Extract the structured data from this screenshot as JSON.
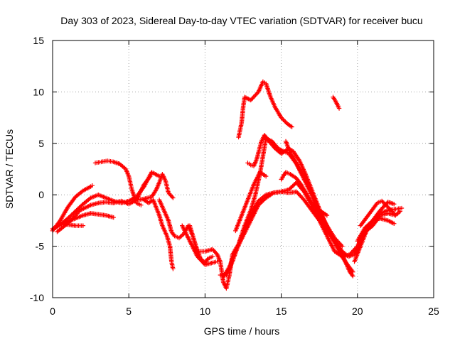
{
  "chart_data": {
    "type": "scatter",
    "title": "Day 303 of 2023, Sidereal Day-to-day VTEC variation (SDTVAR) for receiver bucu",
    "xlabel": "GPS time / hours",
    "ylabel": "SDTVAR / TECUs",
    "xlim": [
      0,
      25
    ],
    "ylim": [
      -10,
      15
    ],
    "xticks": [
      "0",
      "5",
      "10",
      "15",
      "20",
      "25"
    ],
    "yticks": [
      "-10",
      "-5",
      "0",
      "5",
      "10",
      "15"
    ],
    "grid": true,
    "marker": "plus",
    "color": "#ff0000",
    "series": [
      {
        "name": "track-1",
        "points": [
          [
            0,
            -3.5
          ],
          [
            0.5,
            -2.5
          ],
          [
            1.0,
            -1.2
          ],
          [
            1.5,
            -0.2
          ],
          [
            2.0,
            0.4
          ],
          [
            2.5,
            0.8
          ],
          [
            2.6,
            0.9
          ]
        ]
      },
      {
        "name": "track-2",
        "points": [
          [
            0,
            -3.3
          ],
          [
            0.5,
            -2.9
          ],
          [
            1.0,
            -2.3
          ],
          [
            1.5,
            -1.6
          ],
          [
            2.0,
            -0.9
          ],
          [
            2.5,
            -0.3
          ],
          [
            3.0,
            0.0
          ],
          [
            3.5,
            -0.3
          ],
          [
            4.0,
            -0.6
          ],
          [
            4.5,
            -0.8
          ],
          [
            5.0,
            -0.6
          ],
          [
            5.5,
            -0.2
          ],
          [
            6.0,
            0.8
          ],
          [
            6.5,
            2.2
          ],
          [
            7.0,
            1.8
          ]
        ]
      },
      {
        "name": "track-3",
        "points": [
          [
            0.2,
            -3.2
          ],
          [
            0.5,
            -2.9
          ],
          [
            1.0,
            -2.6
          ],
          [
            1.5,
            -2.3
          ],
          [
            2.0,
            -2.0
          ],
          [
            2.5,
            -1.8
          ],
          [
            3.0,
            -1.9
          ],
          [
            3.5,
            -2.0
          ],
          [
            4.0,
            -2.2
          ]
        ]
      },
      {
        "name": "track-4",
        "points": [
          [
            0.3,
            -3.6
          ],
          [
            0.8,
            -3.0
          ],
          [
            1.2,
            -2.5
          ],
          [
            1.8,
            -1.5
          ],
          [
            2.5,
            -1.0
          ],
          [
            3.0,
            -0.8
          ],
          [
            3.5,
            -0.7
          ],
          [
            4.0,
            -0.8
          ],
          [
            4.5,
            -0.6
          ],
          [
            5.0,
            -0.9
          ],
          [
            5.5,
            -0.5
          ],
          [
            6.0,
            1.0
          ],
          [
            6.4,
            1.8
          ]
        ]
      },
      {
        "name": "track-5",
        "points": [
          [
            0.5,
            -2.8
          ],
          [
            1.0,
            -2.9
          ],
          [
            1.5,
            -3.0
          ],
          [
            2.0,
            -3.0
          ]
        ]
      },
      {
        "name": "track-6",
        "points": [
          [
            2.8,
            3.1
          ],
          [
            3.2,
            3.2
          ],
          [
            3.6,
            3.3
          ],
          [
            4.0,
            3.2
          ],
          [
            4.4,
            3.0
          ],
          [
            4.8,
            2.5
          ],
          [
            5.0,
            1.8
          ],
          [
            5.2,
            0.5
          ],
          [
            5.5,
            -0.8
          ],
          [
            5.8,
            -1.0
          ]
        ]
      },
      {
        "name": "track-7",
        "points": [
          [
            5.5,
            -0.5
          ],
          [
            6.0,
            -0.4
          ],
          [
            6.5,
            -0.2
          ],
          [
            6.8,
            0.5
          ],
          [
            7.0,
            1.2
          ],
          [
            7.2,
            2.0
          ],
          [
            7.4,
            1.4
          ],
          [
            7.6,
            0.2
          ],
          [
            7.9,
            -0.3
          ]
        ]
      },
      {
        "name": "track-8",
        "points": [
          [
            6.0,
            -0.5
          ],
          [
            6.3,
            -0.8
          ],
          [
            6.6,
            -0.5
          ],
          [
            7.0,
            -2.0
          ],
          [
            7.2,
            -3.0
          ],
          [
            7.5,
            -4.0
          ],
          [
            7.7,
            -5.0
          ],
          [
            7.8,
            -6.5
          ],
          [
            7.9,
            -7.2
          ]
        ]
      },
      {
        "name": "track-9",
        "points": [
          [
            7.0,
            -0.5
          ],
          [
            7.3,
            -1.5
          ],
          [
            7.6,
            -2.5
          ],
          [
            7.8,
            -3.6
          ],
          [
            8.0,
            -4.0
          ],
          [
            8.3,
            -4.2
          ],
          [
            8.6,
            -3.8
          ],
          [
            8.9,
            -3.0
          ],
          [
            9.2,
            -4.0
          ],
          [
            9.4,
            -5.0
          ],
          [
            9.7,
            -6.2
          ],
          [
            10.0,
            -6.6
          ],
          [
            10.2,
            -6.2
          ],
          [
            10.5,
            -6.0
          ]
        ]
      },
      {
        "name": "track-10",
        "points": [
          [
            8.5,
            -3.0
          ],
          [
            9.0,
            -4.5
          ],
          [
            9.5,
            -6.0
          ],
          [
            10.0,
            -6.8
          ],
          [
            10.5,
            -6.6
          ],
          [
            10.8,
            -6.5
          ]
        ]
      },
      {
        "name": "track-11",
        "points": [
          [
            9.0,
            -3.0
          ],
          [
            9.5,
            -5.5
          ],
          [
            10.0,
            -5.5
          ],
          [
            10.5,
            -5.3
          ],
          [
            10.8,
            -5.8
          ],
          [
            11.0,
            -6.5
          ],
          [
            11.2,
            -8.5
          ],
          [
            11.4,
            -9.1
          ],
          [
            11.6,
            -7.8
          ],
          [
            11.8,
            -5.8
          ],
          [
            12.2,
            -4.8
          ],
          [
            12.5,
            -3.8
          ],
          [
            13.0,
            -2.0
          ],
          [
            13.5,
            -0.6
          ],
          [
            14.0,
            0.0
          ],
          [
            14.5,
            0.2
          ],
          [
            15.0,
            0.3
          ],
          [
            15.5,
            0.2
          ],
          [
            16.0,
            0.3
          ],
          [
            16.5,
            -0.5
          ],
          [
            17.0,
            -1.5
          ],
          [
            17.5,
            -2.5
          ],
          [
            18.0,
            -4.0
          ],
          [
            18.5,
            -5.5
          ],
          [
            19.0,
            -6.0
          ],
          [
            19.5,
            -5.8
          ],
          [
            20.0,
            -5.0
          ],
          [
            20.5,
            -3.5
          ],
          [
            21.0,
            -2.5
          ],
          [
            21.5,
            -1.8
          ],
          [
            22.0,
            -1.5
          ],
          [
            22.5,
            -1.4
          ],
          [
            22.9,
            -1.3
          ]
        ]
      },
      {
        "name": "track-12",
        "points": [
          [
            11.0,
            -7.8
          ],
          [
            11.4,
            -7.8
          ],
          [
            11.8,
            -6.5
          ],
          [
            12.2,
            -4.8
          ],
          [
            12.6,
            -3.0
          ],
          [
            13.0,
            -1.5
          ],
          [
            13.3,
            0.0
          ],
          [
            13.6,
            2.0
          ],
          [
            14.0,
            5.5
          ],
          [
            14.4,
            5.2
          ],
          [
            14.8,
            4.5
          ],
          [
            15.2,
            4.2
          ],
          [
            15.5,
            4.0
          ],
          [
            16.0,
            3.0
          ],
          [
            16.5,
            1.5
          ],
          [
            17.0,
            0.0
          ],
          [
            17.5,
            -2.0
          ],
          [
            18.0,
            -3.5
          ],
          [
            18.5,
            -4.5
          ],
          [
            19.0,
            -5.5
          ],
          [
            19.4,
            -6.0
          ],
          [
            19.8,
            -5.8
          ],
          [
            20.2,
            -4.5
          ],
          [
            20.6,
            -3.5
          ],
          [
            21.0,
            -2.5
          ],
          [
            21.5,
            -1.5
          ],
          [
            22.0,
            -0.7
          ],
          [
            22.4,
            -0.9
          ]
        ]
      },
      {
        "name": "track-13",
        "points": [
          [
            11.2,
            -8.0
          ],
          [
            11.6,
            -7.0
          ],
          [
            12.0,
            -5.5
          ],
          [
            12.5,
            -4.0
          ],
          [
            13.0,
            -2.5
          ],
          [
            13.5,
            -1.0
          ],
          [
            14.0,
            -0.3
          ],
          [
            14.5,
            0.2
          ],
          [
            15.0,
            0.3
          ],
          [
            15.5,
            0.5
          ],
          [
            16.0,
            1.2
          ],
          [
            16.5,
            0.3
          ],
          [
            17.0,
            -1.0
          ],
          [
            17.5,
            -2.5
          ],
          [
            18.0,
            -3.5
          ],
          [
            18.5,
            -4.5
          ],
          [
            19.0,
            -5.8
          ],
          [
            19.5,
            -7.5
          ],
          [
            19.7,
            -7.9
          ]
        ]
      },
      {
        "name": "track-14",
        "points": [
          [
            12.0,
            -3.5
          ],
          [
            12.4,
            -2.0
          ],
          [
            12.8,
            -0.5
          ],
          [
            13.2,
            1.0
          ],
          [
            13.6,
            2.2
          ],
          [
            14.0,
            1.8
          ]
        ]
      },
      {
        "name": "track-15",
        "points": [
          [
            12.2,
            5.6
          ],
          [
            12.4,
            7.0
          ],
          [
            12.5,
            8.5
          ],
          [
            12.6,
            9.5
          ],
          [
            13.0,
            9.2
          ],
          [
            13.5,
            10.0
          ],
          [
            13.8,
            11.0
          ],
          [
            14.0,
            10.8
          ],
          [
            14.3,
            9.5
          ],
          [
            14.6,
            8.5
          ],
          [
            15.0,
            7.5
          ],
          [
            15.4,
            6.9
          ],
          [
            15.7,
            6.6
          ]
        ]
      },
      {
        "name": "track-16",
        "points": [
          [
            12.8,
            3.1
          ],
          [
            13.0,
            2.9
          ],
          [
            13.2,
            2.8
          ],
          [
            13.4,
            3.5
          ],
          [
            13.7,
            5.2
          ],
          [
            13.9,
            5.8
          ],
          [
            14.2,
            5.2
          ],
          [
            14.6,
            4.5
          ],
          [
            15.0,
            4.0
          ],
          [
            15.5,
            4.5
          ],
          [
            15.8,
            4.2
          ],
          [
            16.2,
            3.3
          ],
          [
            16.6,
            2.0
          ],
          [
            17.0,
            0.5
          ],
          [
            17.4,
            -1.0
          ],
          [
            17.8,
            -2.5
          ],
          [
            18.3,
            -4.0
          ],
          [
            18.8,
            -5.5
          ],
          [
            19.2,
            -6.5
          ],
          [
            19.7,
            -7.5
          ]
        ]
      },
      {
        "name": "track-17",
        "points": [
          [
            15.3,
            5.2
          ],
          [
            15.6,
            4.0
          ],
          [
            15.8,
            3.6
          ],
          [
            16.2,
            2.5
          ],
          [
            16.6,
            1.5
          ],
          [
            17.0,
            0.2
          ],
          [
            17.5,
            -1.5
          ],
          [
            18.0,
            -3.0
          ],
          [
            18.5,
            -4.2
          ],
          [
            19.0,
            -5.0
          ]
        ]
      },
      {
        "name": "track-18",
        "points": [
          [
            15.0,
            1.5
          ],
          [
            15.3,
            2.2
          ],
          [
            15.6,
            2.0
          ],
          [
            16.0,
            1.6
          ],
          [
            16.3,
            1.0
          ],
          [
            16.7,
            0.0
          ],
          [
            17.0,
            -0.8
          ],
          [
            17.5,
            -1.5
          ],
          [
            18.0,
            -2.0
          ]
        ]
      },
      {
        "name": "track-19",
        "points": [
          [
            18.4,
            9.5
          ],
          [
            18.6,
            9.0
          ],
          [
            18.8,
            8.4
          ]
        ]
      },
      {
        "name": "track-20",
        "points": [
          [
            19.8,
            -6.5
          ],
          [
            20.2,
            -5.0
          ],
          [
            20.6,
            -3.5
          ],
          [
            21.0,
            -3.0
          ],
          [
            21.5,
            -2.0
          ],
          [
            22.0,
            -1.8
          ],
          [
            22.5,
            -2.0
          ],
          [
            22.8,
            -1.6
          ]
        ]
      },
      {
        "name": "track-21",
        "points": [
          [
            20.0,
            -4.5
          ],
          [
            20.5,
            -3.2
          ],
          [
            21.0,
            -2.5
          ],
          [
            21.5,
            -2.3
          ],
          [
            22.0,
            -2.5
          ],
          [
            22.4,
            -2.8
          ]
        ]
      },
      {
        "name": "track-22",
        "points": [
          [
            20.2,
            -3.0
          ],
          [
            20.6,
            -2.2
          ],
          [
            21.0,
            -1.4
          ],
          [
            21.3,
            -0.8
          ],
          [
            21.6,
            -0.6
          ],
          [
            22.0,
            -1.2
          ],
          [
            22.4,
            -1.8
          ]
        ]
      }
    ]
  }
}
